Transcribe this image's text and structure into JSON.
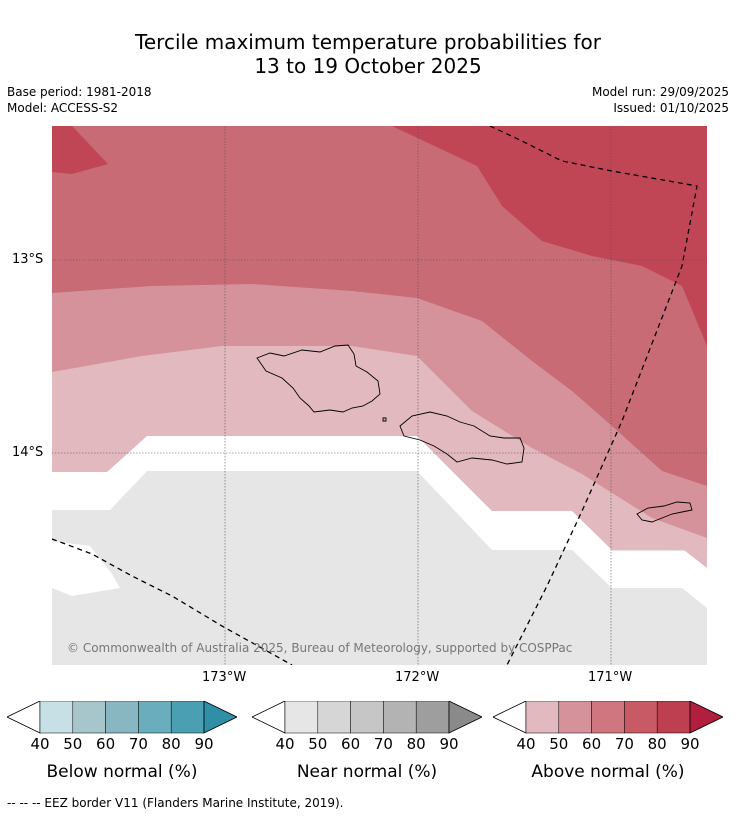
{
  "title_line1": "Tercile maximum temperature probabilities for",
  "title_line2": "13 to 19 October 2025",
  "meta_left": {
    "base_period": "Base period: 1981-2018",
    "model": "Model: ACCESS-S2"
  },
  "meta_right": {
    "model_run": "Model run: 29/09/2025",
    "issued": "Issued: 01/10/2025"
  },
  "lat_labels": [
    "13°S",
    "14°S"
  ],
  "lon_labels": [
    "173°W",
    "172°W",
    "171°W"
  ],
  "copyright": "© Commonwealth of Australia 2025, Bureau of Meteorology, supported by COSPPac",
  "colorbars": [
    {
      "name": "Below normal (%)",
      "ticks": [
        "40",
        "50",
        "60",
        "70",
        "80",
        "90"
      ],
      "colors": [
        "#ffffff",
        "#c7e0e6",
        "#a6c6cb",
        "#88b7c2",
        "#6aaebd",
        "#4a9fb2",
        "#2e8fa6"
      ]
    },
    {
      "name": "Near normal (%)",
      "ticks": [
        "40",
        "50",
        "60",
        "70",
        "80",
        "90"
      ],
      "colors": [
        "#ffffff",
        "#e6e6e6",
        "#d6d6d6",
        "#c6c6c6",
        "#b3b3b3",
        "#9e9e9e",
        "#8a8a8a"
      ]
    },
    {
      "name": "Above normal (%)",
      "ticks": [
        "40",
        "50",
        "60",
        "70",
        "80",
        "90"
      ],
      "colors": [
        "#ffffff",
        "#e1b9be",
        "#d6929a",
        "#cf767e",
        "#c85a66",
        "#bd3f50",
        "#b11e3e"
      ]
    }
  ],
  "footer": "-- -- -- EEZ border V11 (Flanders Marine Institute, 2019)."
}
